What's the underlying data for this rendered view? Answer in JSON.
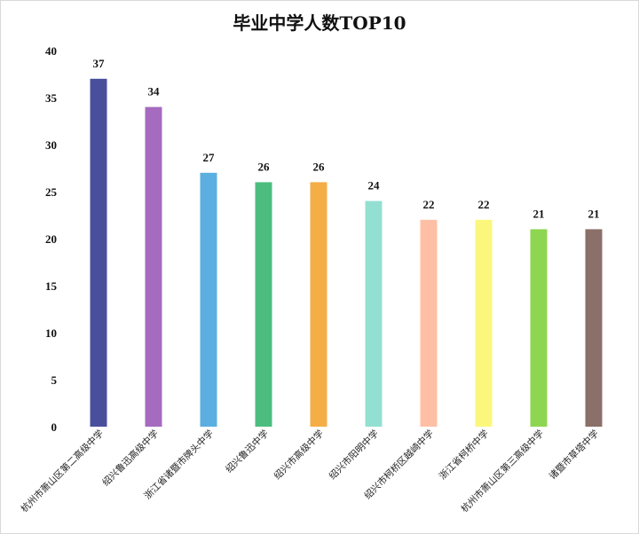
{
  "chart_data": {
    "type": "bar",
    "title": "毕业中学人数TOP10",
    "xlabel": "",
    "ylabel": "",
    "ylim": [
      0,
      40
    ],
    "yticks": [
      0,
      5,
      10,
      15,
      20,
      25,
      30,
      35,
      40
    ],
    "grid": false,
    "legend": "none",
    "categories": [
      "杭州市萧山区第二高级中学",
      "绍兴鲁迅高级中学",
      "浙江省诸暨市牌头中学",
      "绍兴鲁迅中学",
      "绍兴市高级中学",
      "绍兴市阳明中学",
      "绍兴市柯桥区越崎中学",
      "浙江省柯桥中学",
      "杭州市萧山区第三高级中学",
      "诸暨市草塔中学"
    ],
    "values": [
      37,
      34,
      27,
      26,
      26,
      24,
      22,
      22,
      21,
      21
    ],
    "colors": [
      "#4a4f9c",
      "#a56bbf",
      "#5aaee0",
      "#4dbd7f",
      "#f5ad45",
      "#93e0d2",
      "#ffbfa5",
      "#fbf77d",
      "#8ed651",
      "#8a7068"
    ]
  }
}
